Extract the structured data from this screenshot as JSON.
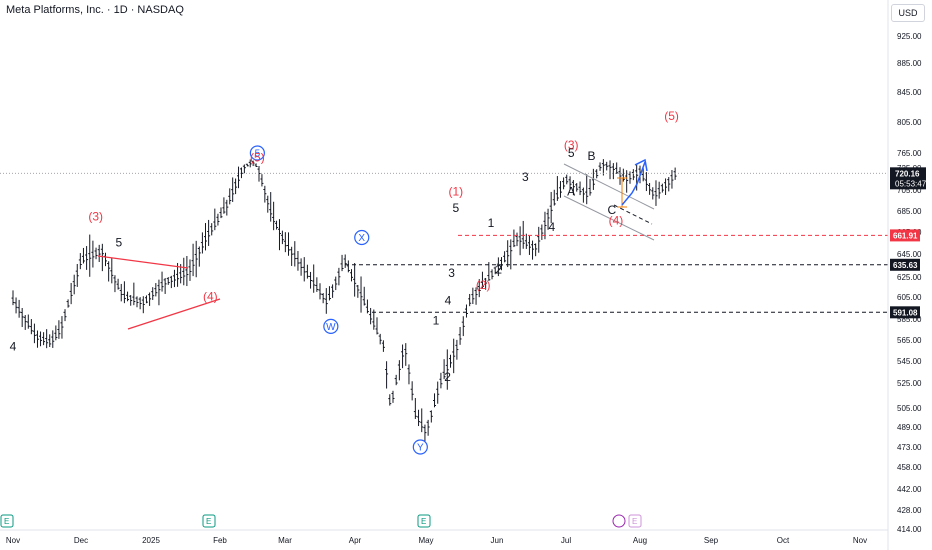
{
  "header": {
    "title": "Meta Platforms, Inc. · 1D · NASDAQ",
    "currency": "USD"
  },
  "chart_data": {
    "type": "candlestick",
    "y_ticks": [
      414,
      428,
      442,
      458,
      473,
      489,
      505,
      525,
      545,
      565,
      585,
      605,
      625,
      645,
      665,
      685,
      705,
      725,
      765,
      805,
      845,
      885,
      925
    ],
    "y_tick_labels": [
      "414.00",
      "428.00",
      "442.00",
      "458.00",
      "473.00",
      "489.00",
      "505.00",
      "525.00",
      "545.00",
      "565.00",
      "585.00",
      "605.00",
      "625.00",
      "645.00",
      "665.00",
      "685.00",
      "705.00",
      "725.00",
      "765.00",
      "805.00",
      "845.00",
      "885.00",
      "925.00"
    ],
    "x_ticks": [
      "Nov",
      "Dec",
      "2025",
      "Feb",
      "Mar",
      "Apr",
      "May",
      "Jun",
      "Jul",
      "Aug",
      "Sep",
      "Oct",
      "Nov"
    ],
    "last_price": {
      "value": 720.16,
      "label": "720.16",
      "countdown": "05:53:47"
    },
    "levels": [
      {
        "value": 661.91,
        "label": "661.91",
        "style": "red-dashed"
      },
      {
        "value": 635.63,
        "label": "635.63",
        "style": "black-dashed"
      },
      {
        "value": 591.08,
        "label": "591.08",
        "style": "black-dashed"
      }
    ],
    "wave_labels": [
      {
        "text": "4",
        "x": 0,
        "y": 555,
        "color": "black"
      },
      {
        "text": "(3)",
        "x": 2.2,
        "y": 676,
        "color": "red"
      },
      {
        "text": "5",
        "x": 2.8,
        "y": 652,
        "color": "black"
      },
      {
        "text": "(4)",
        "x": 5.2,
        "y": 602,
        "color": "red"
      },
      {
        "text": "5",
        "x": 6.5,
        "y": 765,
        "color": "blue-circle"
      },
      {
        "text": "(5)",
        "x": 6.5,
        "y": 742,
        "color": "red"
      },
      {
        "text": "W",
        "x": 8.6,
        "y": 578,
        "color": "blue-circle"
      },
      {
        "text": "X",
        "x": 9.4,
        "y": 660,
        "color": "blue-circle"
      },
      {
        "text": "Y",
        "x": 10.9,
        "y": 473,
        "color": "blue-circle"
      },
      {
        "text": "1",
        "x": 11.3,
        "y": 580,
        "color": "black"
      },
      {
        "text": "2",
        "x": 11.6,
        "y": 527,
        "color": "black"
      },
      {
        "text": "3",
        "x": 11.7,
        "y": 625,
        "color": "black"
      },
      {
        "text": "4",
        "x": 12.2,
        "y": 598,
        "color": "black"
      },
      {
        "text": "(1)",
        "x": 12.4,
        "y": 700,
        "color": "red"
      },
      {
        "text": "5",
        "x": 12.4,
        "y": 684,
        "color": "black"
      },
      {
        "text": "(2)",
        "x": 13.1,
        "y": 613,
        "color": "red"
      },
      {
        "text": "1",
        "x": 13.3,
        "y": 670,
        "color": "black"
      },
      {
        "text": "2",
        "x": 13.5,
        "y": 628,
        "color": "black"
      },
      {
        "text": "3",
        "x": 14.2,
        "y": 713,
        "color": "black"
      },
      {
        "text": "4",
        "x": 14.9,
        "y": 666,
        "color": "black"
      },
      {
        "text": "(3)",
        "x": 15.4,
        "y": 770,
        "color": "red"
      },
      {
        "text": "5",
        "x": 15.4,
        "y": 754,
        "color": "black"
      },
      {
        "text": "B",
        "x": 15.9,
        "y": 746,
        "color": "black"
      },
      {
        "text": "A",
        "x": 15.4,
        "y": 700,
        "color": "black"
      },
      {
        "text": "C",
        "x": 16.4,
        "y": 682,
        "color": "black"
      },
      {
        "text": "(4)",
        "x": 16.5,
        "y": 672,
        "color": "red"
      },
      {
        "text": "(5)",
        "x": 17.9,
        "y": 808,
        "color": "red"
      }
    ]
  }
}
